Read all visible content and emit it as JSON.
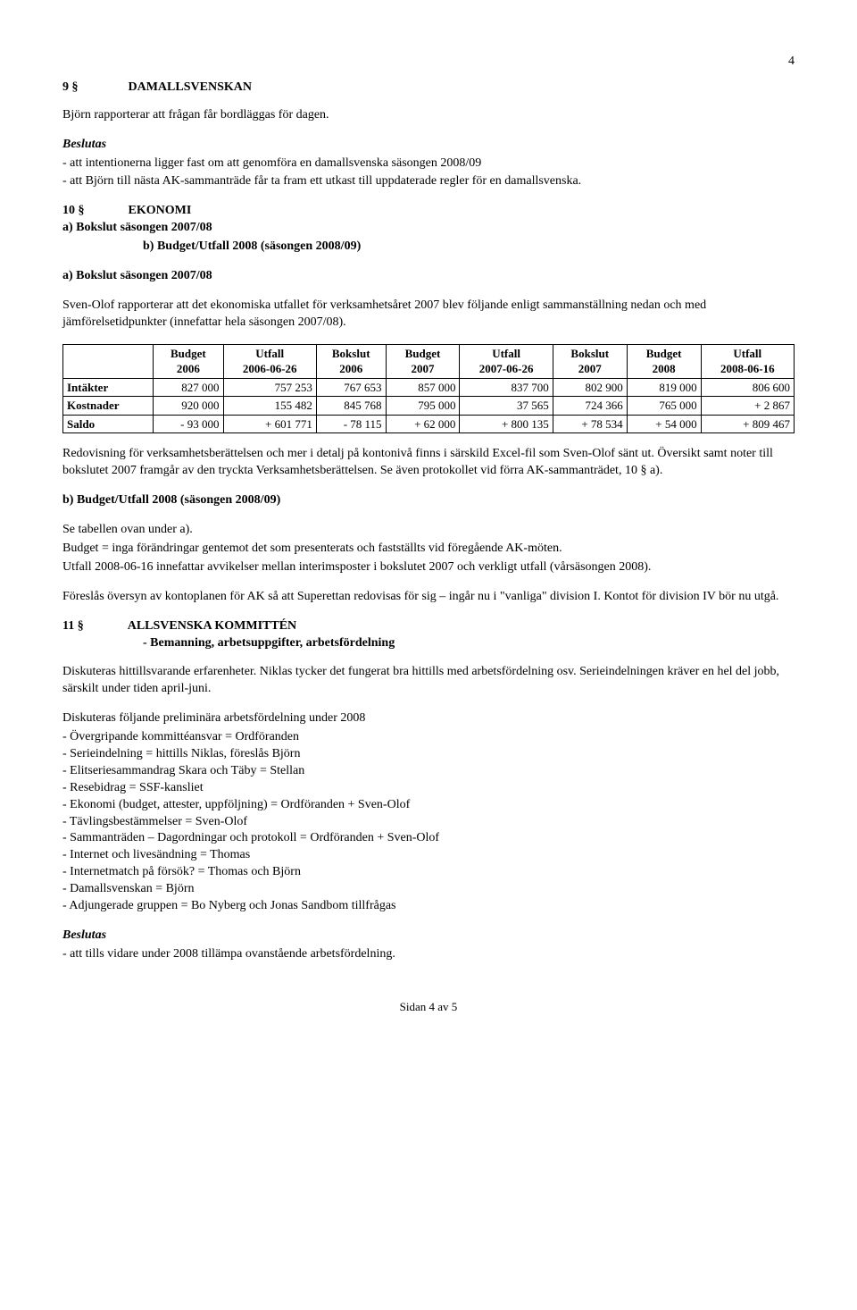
{
  "page_number": "4",
  "s9": {
    "heading_num": "9 §",
    "heading_title": "DAMALLSVENSKAN",
    "line1": "Björn rapporterar att frågan får bordläggas för dagen.",
    "beslutas": "Beslutas",
    "b1": "- att intentionerna ligger fast om att genomföra en damallsvenska säsongen 2008/09",
    "b2": "- att Björn till nästa AK-sammanträde får ta fram ett utkast till uppdaterade regler för en damallsvenska."
  },
  "s10": {
    "heading_num": "10 §",
    "heading_title": "EKONOMI",
    "sub_a": "a) Bokslut säsongen 2007/08",
    "sub_b": "b) Budget/Utfall 2008 (säsongen 2008/09)",
    "a_heading": "a) Bokslut säsongen 2007/08",
    "a_para": "Sven-Olof rapporterar att det ekonomiska utfallet för verksamhetsåret 2007 blev följande enligt sammanställning nedan och med jämförelsetidpunkter (innefattar hela säsongen 2007/08).",
    "table": {
      "headers": [
        {
          "l1": "",
          "l2": ""
        },
        {
          "l1": "Budget",
          "l2": "2006"
        },
        {
          "l1": "Utfall",
          "l2": "2006-06-26"
        },
        {
          "l1": "Bokslut",
          "l2": "2006"
        },
        {
          "l1": "Budget",
          "l2": "2007"
        },
        {
          "l1": "Utfall",
          "l2": "2007-06-26"
        },
        {
          "l1": "Bokslut",
          "l2": "2007"
        },
        {
          "l1": "Budget",
          "l2": "2008"
        },
        {
          "l1": "Utfall",
          "l2": "2008-06-16"
        }
      ],
      "rows": [
        {
          "label": "Intäkter",
          "cells": [
            "827 000",
            "757 253",
            "767 653",
            "857 000",
            "837 700",
            "802 900",
            "819 000",
            "806 600"
          ]
        },
        {
          "label": "Kostnader",
          "cells": [
            "920 000",
            "155 482",
            "845 768",
            "795 000",
            "37 565",
            "724 366",
            "765 000",
            "+ 2 867"
          ]
        },
        {
          "label": "Saldo",
          "cells": [
            "- 93 000",
            "+ 601 771",
            "- 78 115",
            "+ 62 000",
            "+ 800 135",
            "+ 78 534",
            "+ 54 000",
            "+ 809 467"
          ]
        }
      ]
    },
    "after_table_1": "Redovisning för verksamhetsberättelsen och mer i detalj på kontonivå finns i särskild Excel-fil som Sven-Olof sänt ut. Översikt samt noter till bokslutet 2007 framgår av den tryckta Verksamhetsberättelsen. Se även protokollet vid förra AK-sammanträdet, 10 § a).",
    "b_heading": "b) Budget/Utfall 2008 (säsongen 2008/09)",
    "b_l1": "Se tabellen ovan under a).",
    "b_l2": "Budget = inga förändringar gentemot det som presenterats och fastställts vid föregående AK-möten.",
    "b_l3": "Utfall 2008-06-16 innefattar avvikelser mellan interimsposter i bokslutet 2007 och verkligt utfall (vårsäsongen 2008).",
    "b_l4": "Föreslås översyn av kontoplanen för AK så att Superettan redovisas för sig – ingår nu i \"vanliga\" division I. Kontot för division IV bör nu utgå."
  },
  "s11": {
    "heading_num": "11 §",
    "heading_title": "ALLSVENSKA KOMMITTÉN",
    "sub": "- Bemanning, arbetsuppgifter, arbetsfördelning",
    "p1": "Diskuteras hittillsvarande erfarenheter. Niklas tycker det fungerat bra hittills med arbetsfördelning osv. Serieindelningen kräver en hel del jobb, särskilt under tiden april-juni.",
    "p2_intro": "Diskuteras följande preliminära arbetsfördelning under 2008",
    "items": [
      "- Övergripande kommittéansvar = Ordföranden",
      "- Serieindelning = hittills Niklas, föreslås Björn",
      "- Elitseriesammandrag Skara och Täby = Stellan",
      "- Resebidrag = SSF-kansliet",
      "- Ekonomi (budget, attester, uppföljning) = Ordföranden + Sven-Olof",
      "- Tävlingsbestämmelser = Sven-Olof",
      "- Sammanträden – Dagordningar och protokoll = Ordföranden + Sven-Olof",
      "- Internet och livesändning = Thomas",
      "- Internetmatch på försök? = Thomas och Björn",
      "- Damallsvenskan = Björn",
      "- Adjungerade gruppen = Bo Nyberg och Jonas Sandbom tillfrågas"
    ],
    "beslutas": "Beslutas",
    "b1": "- att tills vidare under 2008 tillämpa ovanstående arbetsfördelning."
  },
  "footer": "Sidan 4 av 5"
}
